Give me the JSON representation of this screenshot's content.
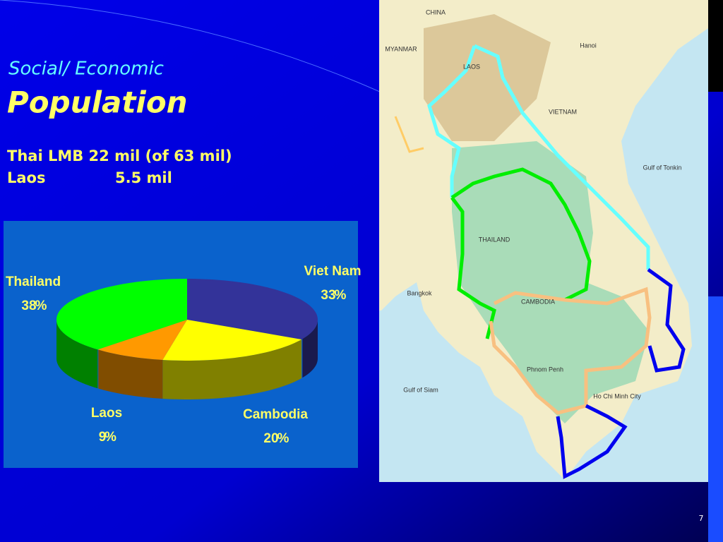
{
  "slide": {
    "subtitle": "Social/ Economic",
    "title": "Population",
    "stats": {
      "thai": "Thai LMB 22 mil (of 63 mil)",
      "laos_name": "Laos",
      "laos_value": "5.5 mil"
    },
    "page_number": "7"
  },
  "chart_data": {
    "type": "pie",
    "categories": [
      "Viet Nam",
      "Cambodia",
      "Laos",
      "Thailand"
    ],
    "values": [
      33,
      20,
      9,
      38
    ],
    "colors": [
      "#333399",
      "#ffff00",
      "#ff9900",
      "#00ff00"
    ]
  },
  "map": {
    "labels": [
      "CHINA",
      "MYANMAR",
      "LAOS",
      "Hanoi",
      "VIETNAM",
      "Gulf of Tonkin",
      "THAILAND",
      "Bangkok",
      "CAMBODIA",
      "Phnom Penh",
      "Ho Chi Minh City",
      "Gulf of Siam"
    ]
  }
}
